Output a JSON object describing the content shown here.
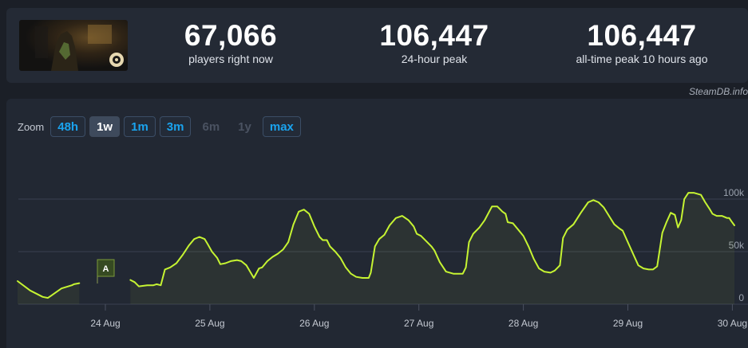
{
  "stats": [
    {
      "value": "67,066",
      "label": "players right now"
    },
    {
      "value": "106,447",
      "label": "24-hour peak"
    },
    {
      "value": "106,447",
      "label": "all-time peak 10 hours ago"
    }
  ],
  "credit": "SteamDB.info",
  "zoom": {
    "label": "Zoom",
    "options": [
      {
        "label": "48h",
        "state": "enabled"
      },
      {
        "label": "1w",
        "state": "active"
      },
      {
        "label": "1m",
        "state": "enabled"
      },
      {
        "label": "3m",
        "state": "enabled"
      },
      {
        "label": "6m",
        "state": "disabled"
      },
      {
        "label": "1y",
        "state": "disabled"
      },
      {
        "label": "max",
        "state": "enabled"
      }
    ]
  },
  "chart_data": {
    "type": "area",
    "ylabel": "",
    "ylim": [
      0,
      110000
    ],
    "y_ticks": [
      {
        "value": 0,
        "label": "0"
      },
      {
        "value": 50000,
        "label": "50k"
      },
      {
        "value": 100000,
        "label": "100k"
      }
    ],
    "x_ticks": [
      "24 Aug",
      "25 Aug",
      "26 Aug",
      "27 Aug",
      "28 Aug",
      "29 Aug",
      "30 Aug"
    ],
    "xlim": [
      -0.84,
      6.18
    ],
    "annotation": {
      "label": "A",
      "day": 0.0
    },
    "line_color": "#c6f432",
    "series": [
      {
        "segments": [
          [
            [
              -0.84,
              22000
            ],
            [
              -0.72,
              13000
            ],
            [
              -0.6,
              7000
            ],
            [
              -0.55,
              6000
            ],
            [
              -0.52,
              8000
            ],
            [
              -0.42,
              15000
            ],
            [
              -0.32,
              18000
            ],
            [
              -0.3,
              19000
            ],
            [
              -0.25,
              20000
            ]
          ],
          [
            [
              0.24,
              23000
            ],
            [
              0.28,
              21000
            ],
            [
              0.32,
              17000
            ],
            [
              0.4,
              18000
            ],
            [
              0.46,
              18000
            ],
            [
              0.49,
              19000
            ],
            [
              0.53,
              18000
            ],
            [
              0.57,
              33000
            ],
            [
              0.62,
              35000
            ],
            [
              0.68,
              39000
            ],
            [
              0.74,
              47000
            ],
            [
              0.8,
              56000
            ],
            [
              0.85,
              62000
            ],
            [
              0.9,
              64000
            ],
            [
              0.95,
              62000
            ],
            [
              0.98,
              57000
            ],
            [
              1.02,
              50000
            ],
            [
              1.07,
              44000
            ],
            [
              1.1,
              38000
            ],
            [
              1.15,
              39000
            ],
            [
              1.2,
              41000
            ],
            [
              1.26,
              42000
            ],
            [
              1.3,
              41000
            ],
            [
              1.35,
              37000
            ],
            [
              1.42,
              25000
            ],
            [
              1.47,
              34000
            ],
            [
              1.5,
              35000
            ],
            [
              1.55,
              41000
            ],
            [
              1.6,
              45000
            ],
            [
              1.65,
              48000
            ],
            [
              1.7,
              52000
            ],
            [
              1.75,
              59000
            ],
            [
              1.8,
              76000
            ],
            [
              1.85,
              88000
            ],
            [
              1.9,
              90000
            ],
            [
              1.95,
              86000
            ],
            [
              2.0,
              74000
            ],
            [
              2.05,
              64000
            ],
            [
              2.08,
              61000
            ],
            [
              2.12,
              61000
            ],
            [
              2.15,
              55000
            ],
            [
              2.2,
              50000
            ],
            [
              2.25,
              44000
            ],
            [
              2.3,
              35000
            ],
            [
              2.35,
              29000
            ],
            [
              2.4,
              26000
            ],
            [
              2.46,
              25000
            ],
            [
              2.52,
              25000
            ],
            [
              2.54,
              30000
            ],
            [
              2.58,
              55000
            ],
            [
              2.62,
              62000
            ],
            [
              2.67,
              66000
            ],
            [
              2.72,
              75000
            ],
            [
              2.78,
              82000
            ],
            [
              2.84,
              84000
            ],
            [
              2.9,
              80000
            ],
            [
              2.95,
              74000
            ],
            [
              2.98,
              67000
            ],
            [
              3.02,
              65000
            ],
            [
              3.07,
              60000
            ],
            [
              3.12,
              55000
            ],
            [
              3.15,
              51000
            ],
            [
              3.2,
              40000
            ],
            [
              3.26,
              31000
            ],
            [
              3.33,
              29000
            ],
            [
              3.4,
              29000
            ],
            [
              3.42,
              29000
            ],
            [
              3.45,
              35000
            ],
            [
              3.48,
              59000
            ],
            [
              3.52,
              67000
            ],
            [
              3.58,
              73000
            ],
            [
              3.63,
              80000
            ],
            [
              3.7,
              93000
            ],
            [
              3.75,
              93000
            ],
            [
              3.8,
              88000
            ],
            [
              3.83,
              86000
            ],
            [
              3.85,
              78000
            ],
            [
              3.9,
              77000
            ],
            [
              3.95,
              71000
            ],
            [
              4.0,
              65000
            ],
            [
              4.05,
              55000
            ],
            [
              4.1,
              43000
            ],
            [
              4.15,
              34000
            ],
            [
              4.2,
              31000
            ],
            [
              4.26,
              30000
            ],
            [
              4.3,
              32000
            ],
            [
              4.35,
              37000
            ],
            [
              4.38,
              63000
            ],
            [
              4.42,
              71000
            ],
            [
              4.48,
              76000
            ],
            [
              4.55,
              87000
            ],
            [
              4.62,
              97000
            ],
            [
              4.67,
              99000
            ],
            [
              4.72,
              97000
            ],
            [
              4.77,
              92000
            ],
            [
              4.82,
              84000
            ],
            [
              4.87,
              76000
            ],
            [
              4.92,
              72000
            ],
            [
              4.95,
              70000
            ],
            [
              5.0,
              59000
            ],
            [
              5.05,
              48000
            ],
            [
              5.1,
              37000
            ],
            [
              5.15,
              34000
            ],
            [
              5.2,
              33000
            ],
            [
              5.24,
              33000
            ],
            [
              5.28,
              36000
            ],
            [
              5.33,
              68000
            ],
            [
              5.37,
              78000
            ],
            [
              5.41,
              87000
            ],
            [
              5.45,
              85000
            ],
            [
              5.48,
              73000
            ],
            [
              5.51,
              80000
            ],
            [
              5.54,
              100000
            ],
            [
              5.58,
              106000
            ],
            [
              5.63,
              106000
            ],
            [
              5.7,
              104000
            ],
            [
              5.74,
              97000
            ],
            [
              5.78,
              91000
            ],
            [
              5.81,
              86000
            ],
            [
              5.85,
              84000
            ],
            [
              5.9,
              84000
            ],
            [
              5.95,
              82000
            ],
            [
              5.97,
              82000
            ],
            [
              5.99,
              79000
            ],
            [
              6.02,
              75000
            ]
          ]
        ]
      }
    ]
  }
}
